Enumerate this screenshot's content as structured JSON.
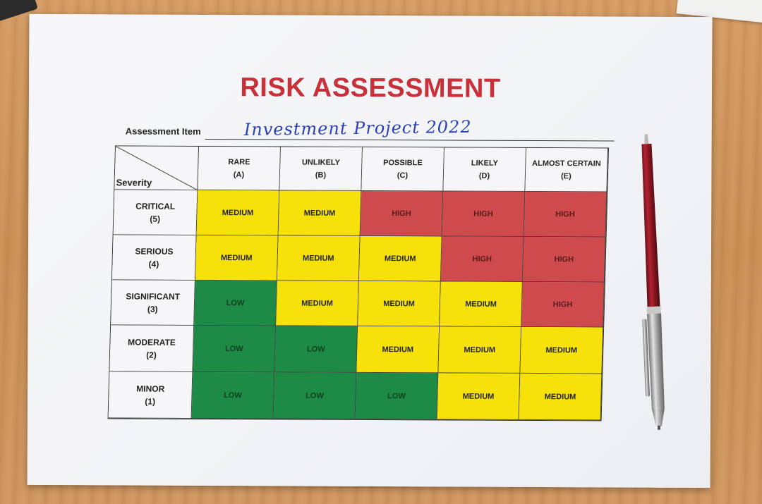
{
  "title": "RISK ASSESSMENT",
  "assessment": {
    "label": "Assessment Item",
    "value": "Investment Project 2022"
  },
  "matrix": {
    "corner_label": "Severity",
    "columns": [
      {
        "name": "RARE",
        "code": "(A)"
      },
      {
        "name": "UNLIKELY",
        "code": "(B)"
      },
      {
        "name": "POSSIBLE",
        "code": "(C)"
      },
      {
        "name": "LIKELY",
        "code": "(D)"
      },
      {
        "name": "ALMOST CERTAIN",
        "code": "(E)"
      }
    ],
    "rows": [
      {
        "name": "CRITICAL",
        "code": "(5)",
        "cells": [
          "MEDIUM",
          "MEDIUM",
          "HIGH",
          "HIGH",
          "HIGH"
        ]
      },
      {
        "name": "SERIOUS",
        "code": "(4)",
        "cells": [
          "MEDIUM",
          "MEDIUM",
          "MEDIUM",
          "HIGH",
          "HIGH"
        ]
      },
      {
        "name": "SIGNIFICANT",
        "code": "(3)",
        "cells": [
          "LOW",
          "MEDIUM",
          "MEDIUM",
          "MEDIUM",
          "HIGH"
        ]
      },
      {
        "name": "MODERATE",
        "code": "(2)",
        "cells": [
          "LOW",
          "LOW",
          "MEDIUM",
          "MEDIUM",
          "MEDIUM"
        ]
      },
      {
        "name": "MINOR",
        "code": "(1)",
        "cells": [
          "LOW",
          "LOW",
          "LOW",
          "MEDIUM",
          "MEDIUM"
        ]
      }
    ]
  },
  "colors": {
    "title": "#c8303a",
    "medium": "#f6e20a",
    "high": "#cf4a4c",
    "low": "#1d8a46",
    "handwriting": "#2a3fb8"
  },
  "objects": {
    "pen": "red-ballpoint-pen",
    "surface": "wooden-desk"
  }
}
